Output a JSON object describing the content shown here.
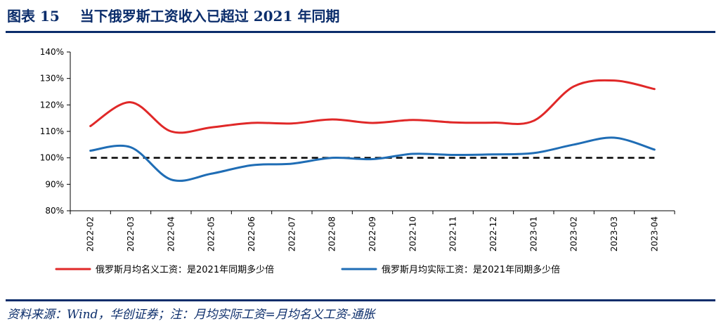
{
  "figure": {
    "label": "图表 15",
    "title": "当下俄罗斯工资收入已超过 2021 年同期",
    "source": "资料来源：Wind，华创证券；注：月均实际工资=月均名义工资-通胀"
  },
  "chart_data": {
    "type": "line",
    "categories": [
      "2022-02",
      "2022-03",
      "2022-04",
      "2022-05",
      "2022-06",
      "2022-07",
      "2022-08",
      "2022-09",
      "2022-10",
      "2022-11",
      "2022-12",
      "2023-01",
      "2023-02",
      "2023-03",
      "2023-04"
    ],
    "yticks": [
      "80%",
      "90%",
      "100%",
      "110%",
      "120%",
      "130%",
      "140%"
    ],
    "ylim": [
      80,
      140
    ],
    "ystep": 10,
    "legend_position": "bottom",
    "series": [
      {
        "name": "俄罗斯月均名义工资：是2021年同期多少倍",
        "color": "#e02828",
        "values": [
          112,
          121,
          110,
          111.5,
          113.2,
          113,
          114.5,
          113.2,
          114.3,
          113.4,
          113.3,
          114,
          127,
          129.2,
          126
        ]
      },
      {
        "name": "俄罗斯月均实际工资：是2021年同期多少倍",
        "color": "#1f6db5",
        "values": [
          102.7,
          104,
          91.8,
          94,
          97.2,
          97.8,
          100,
          99.5,
          101.5,
          101.1,
          101.3,
          101.8,
          105,
          107.6,
          103.1
        ]
      }
    ],
    "reference_line": {
      "value": 100,
      "style": "dashed",
      "color": "#000000"
    }
  }
}
